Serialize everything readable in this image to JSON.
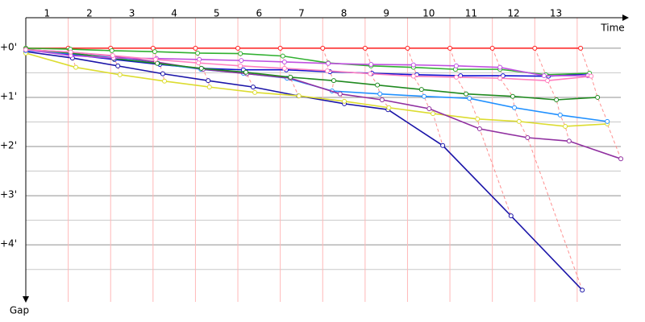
{
  "chart_data": {
    "type": "line",
    "x_label": "Time",
    "y_label": "Gap",
    "categories": [
      "1",
      "2",
      "3",
      "4",
      "5",
      "6",
      "7",
      "8",
      "9",
      "10",
      "11",
      "12",
      "13"
    ],
    "xlim": [
      0,
      14.2
    ],
    "xticks": [
      1,
      2,
      3,
      4,
      5,
      6,
      7,
      8,
      9,
      10,
      11,
      12,
      13
    ],
    "ylim": [
      -0.62,
      5.16
    ],
    "yticks": [
      {
        "value": 0,
        "label": "+0'"
      },
      {
        "value": 1,
        "label": "+1'"
      },
      {
        "value": 2,
        "label": "+2'"
      },
      {
        "value": 3,
        "label": "+3'"
      },
      {
        "value": 4,
        "label": "+4'"
      }
    ],
    "y_minor_ticks": [
      0.5,
      1.5,
      2.5,
      3.5,
      4.5
    ],
    "grid": true,
    "series": [
      {
        "color": "#ff2020",
        "x": [
          0,
          1,
          2,
          3,
          4,
          5,
          6,
          7,
          8,
          9,
          10,
          11,
          12,
          13.08
        ],
        "values": [
          0,
          0,
          0,
          0,
          0,
          0,
          0,
          0,
          0,
          0,
          0,
          0,
          0,
          0
        ]
      },
      {
        "color": "#1a14a8",
        "x": [
          0,
          1.1,
          2.17,
          3.23,
          4.3,
          5.36,
          6.43,
          7.51,
          8.54,
          9.83,
          11.44,
          13.12
        ],
        "values": [
          0.07,
          0.2,
          0.36,
          0.52,
          0.66,
          0.79,
          0.97,
          1.13,
          1.25,
          1.98,
          3.41,
          4.92
        ]
      },
      {
        "color": "#1010d0",
        "x": [
          0,
          1.06,
          2.09,
          3.16,
          4.14,
          5.13,
          6.14,
          7.17,
          8.16,
          9.22,
          10.25,
          11.25,
          12.32,
          13.29
        ],
        "values": [
          0.03,
          0.13,
          0.23,
          0.33,
          0.41,
          0.44,
          0.44,
          0.48,
          0.51,
          0.54,
          0.56,
          0.56,
          0.57,
          0.52
        ]
      },
      {
        "color": "#dcdc30",
        "x": [
          0,
          1.18,
          2.22,
          3.27,
          4.33,
          5.4,
          6.44,
          7.51,
          8.56,
          9.6,
          10.65,
          11.63,
          12.72,
          13.71
        ],
        "values": [
          0.1,
          0.39,
          0.54,
          0.67,
          0.79,
          0.9,
          0.97,
          1.08,
          1.21,
          1.33,
          1.44,
          1.49,
          1.59,
          1.54
        ]
      },
      {
        "color": "#2090ff",
        "x": [
          0,
          1.06,
          2.11,
          3.12,
          4.13,
          5.13,
          6.16,
          7.22,
          8.35,
          9.39,
          10.46,
          11.52,
          12.6,
          13.71
        ],
        "values": [
          0.05,
          0.11,
          0.2,
          0.31,
          0.43,
          0.51,
          0.61,
          0.87,
          0.93,
          0.98,
          1.02,
          1.21,
          1.36,
          1.49
        ]
      },
      {
        "color": "#9030a0",
        "x": [
          0,
          1.06,
          2.05,
          3.06,
          4.18,
          5.21,
          6.24,
          7.41,
          8.4,
          9.51,
          10.7,
          11.83,
          12.81,
          14.03
        ],
        "values": [
          0.03,
          0.08,
          0.16,
          0.28,
          0.43,
          0.52,
          0.61,
          0.93,
          1.05,
          1.23,
          1.64,
          1.82,
          1.89,
          2.25
        ]
      },
      {
        "color": "#30b030",
        "x": [
          0,
          1.05,
          2.03,
          3.04,
          4.05,
          5.06,
          6.06,
          7.13,
          8.14,
          9.14,
          10.13,
          11.18,
          12.26,
          13.29
        ],
        "values": [
          0,
          0.02,
          0.05,
          0.07,
          0.1,
          0.11,
          0.16,
          0.3,
          0.36,
          0.39,
          0.43,
          0.43,
          0.54,
          0.51
        ]
      },
      {
        "color": "#208a20",
        "x": [
          0,
          1.06,
          2.07,
          3.1,
          4.14,
          5.19,
          6.24,
          7.26,
          8.29,
          9.33,
          10.38,
          11.48,
          12.51,
          13.48
        ],
        "values": [
          0.02,
          0.1,
          0.21,
          0.31,
          0.41,
          0.49,
          0.59,
          0.66,
          0.75,
          0.84,
          0.93,
          0.98,
          1.05,
          1.0
        ]
      },
      {
        "color": "#c050e0",
        "x": [
          0,
          1.06,
          2.07,
          3.08,
          4.09,
          5.08,
          6.1,
          7.13,
          8.14,
          9.14,
          10.15,
          11.18,
          12.22,
          13.25
        ],
        "values": [
          0.03,
          0.15,
          0.2,
          0.21,
          0.23,
          0.25,
          0.28,
          0.31,
          0.33,
          0.34,
          0.36,
          0.39,
          0.56,
          0.56
        ]
      },
      {
        "color": "#ff80c0",
        "x": [
          0,
          1.06,
          2.05,
          3.06,
          4.07,
          5.06,
          6.1,
          7.11,
          8.12,
          9.14,
          10.15,
          11.18,
          12.3,
          13.33
        ],
        "values": [
          0.03,
          0.08,
          0.15,
          0.23,
          0.3,
          0.36,
          0.41,
          0.46,
          0.52,
          0.57,
          0.59,
          0.61,
          0.66,
          0.57
        ]
      }
    ]
  }
}
